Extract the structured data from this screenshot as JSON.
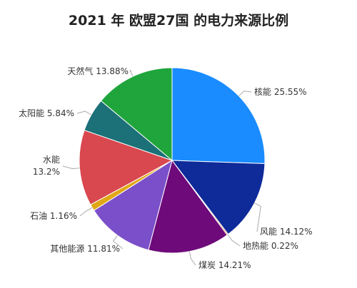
{
  "chart_data": {
    "type": "pie",
    "title": "2021 年 欧盟27国 的电力来源比例",
    "unit": "%",
    "slices": [
      {
        "label": "核能",
        "value": 25.55,
        "display": "25.55%",
        "color": "#1a8cff"
      },
      {
        "label": "风能",
        "value": 14.12,
        "display": "14.12%",
        "color": "#0f2a99"
      },
      {
        "label": "地热能",
        "value": 0.22,
        "display": "0.22%",
        "color": "#e07b39"
      },
      {
        "label": "煤炭",
        "value": 14.21,
        "display": "14.21%",
        "color": "#6e0a7a"
      },
      {
        "label": "其他能源",
        "value": 11.81,
        "display": "11.81%",
        "color": "#7b4fc9"
      },
      {
        "label": "石油",
        "value": 1.16,
        "display": "1.16%",
        "color": "#e0a817"
      },
      {
        "label": "水能",
        "value": 13.2,
        "display": "13.2%",
        "color": "#d9474f"
      },
      {
        "label": "太阳能",
        "value": 5.84,
        "display": "5.84%",
        "color": "#1c7077"
      },
      {
        "label": "天然气",
        "value": 13.88,
        "display": "13.88%",
        "color": "#1fa53c"
      }
    ]
  }
}
